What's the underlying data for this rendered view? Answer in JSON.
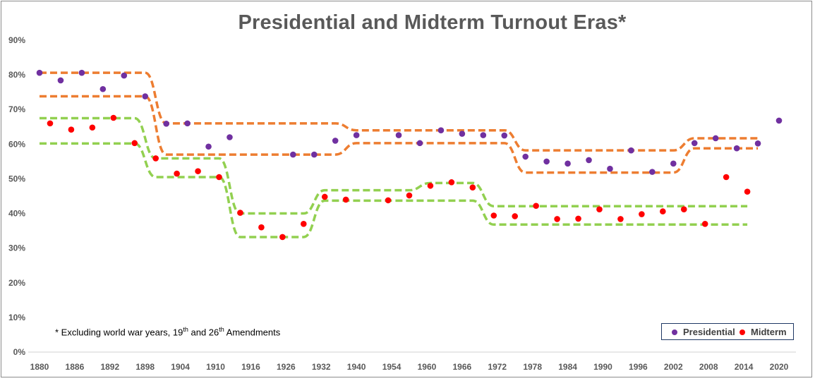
{
  "chart_data": {
    "type": "scatter",
    "title": "Presidential and Midterm Turnout Eras*",
    "xlabel": "",
    "ylabel": "",
    "x_ticks": [
      "1880",
      "1886",
      "1892",
      "1898",
      "1904",
      "1910",
      "1916",
      "1926",
      "1932",
      "1940",
      "1954",
      "1960",
      "1966",
      "1972",
      "1978",
      "1984",
      "1990",
      "1996",
      "2002",
      "2008",
      "2014",
      "2020"
    ],
    "y_ticks": [
      "0%",
      "10%",
      "20%",
      "30%",
      "40%",
      "50%",
      "60%",
      "70%",
      "80%",
      "90%"
    ],
    "ylim": [
      0,
      90
    ],
    "grid": false,
    "legend": "bottom-right",
    "annotation": {
      "prefix": "* Excluding world war years, 19",
      "sup1": "th",
      "mid": " and 26",
      "sup2": "th",
      "suffix": " Amendments"
    },
    "series": [
      {
        "name": "Presidential",
        "color": "#7030a0",
        "points": [
          [
            "1880",
            80.6
          ],
          [
            "1884",
            78.4
          ],
          [
            "1888",
            80.6
          ],
          [
            "1892",
            75.9
          ],
          [
            "1896",
            79.8
          ],
          [
            "1900",
            73.8
          ],
          [
            "1904",
            65.9
          ],
          [
            "1908",
            66.0
          ],
          [
            "1912",
            59.3
          ],
          [
            "1916",
            62.0
          ],
          [
            "1928",
            57.0
          ],
          [
            "1932",
            57.0
          ],
          [
            "1936",
            61.0
          ],
          [
            "1940",
            62.6
          ],
          [
            "1948",
            62.6
          ],
          [
            "1952",
            60.3
          ],
          [
            "1956",
            64.0
          ],
          [
            "1960",
            63.0
          ],
          [
            "1964",
            62.6
          ],
          [
            "1968",
            62.5
          ],
          [
            "1972",
            56.4
          ],
          [
            "1976",
            55.0
          ],
          [
            "1980",
            54.4
          ],
          [
            "1984",
            55.4
          ],
          [
            "1988",
            52.9
          ],
          [
            "1992",
            58.2
          ],
          [
            "1996",
            52.0
          ],
          [
            "2000",
            54.4
          ],
          [
            "2004",
            60.3
          ],
          [
            "2008",
            61.7
          ],
          [
            "2012",
            58.8
          ],
          [
            "2016",
            60.2
          ],
          [
            "2020",
            66.8
          ]
        ]
      },
      {
        "name": "Midterm",
        "color": "#ff0000",
        "points": [
          [
            "1882",
            66.0
          ],
          [
            "1886",
            64.2
          ],
          [
            "1890",
            64.8
          ],
          [
            "1894",
            67.6
          ],
          [
            "1898",
            60.3
          ],
          [
            "1902",
            55.9
          ],
          [
            "1906",
            51.5
          ],
          [
            "1910",
            52.2
          ],
          [
            "1914",
            50.5
          ],
          [
            "1918",
            40.2
          ],
          [
            "1922",
            36.0
          ],
          [
            "1926",
            33.2
          ],
          [
            "1930",
            37.0
          ],
          [
            "1934",
            44.8
          ],
          [
            "1938",
            44.0
          ],
          [
            "1946",
            43.8
          ],
          [
            "1950",
            45.2
          ],
          [
            "1954",
            48.0
          ],
          [
            "1958",
            49.0
          ],
          [
            "1962",
            47.5
          ],
          [
            "1966",
            39.4
          ],
          [
            "1970",
            39.2
          ],
          [
            "1974",
            42.2
          ],
          [
            "1978",
            38.4
          ],
          [
            "1982",
            38.5
          ],
          [
            "1986",
            41.2
          ],
          [
            "1990",
            38.4
          ],
          [
            "1994",
            39.8
          ],
          [
            "1998",
            40.6
          ],
          [
            "2002",
            41.2
          ],
          [
            "2006",
            37.0
          ],
          [
            "2010",
            50.5
          ],
          [
            "2014",
            46.3
          ]
        ]
      }
    ],
    "era_bands": [
      {
        "color": "#ed7d31",
        "name": "presidential-era-upper",
        "segments": [
          [
            1880,
            1900,
            80.6
          ],
          [
            1904,
            1936,
            66.0
          ],
          [
            1940,
            1968,
            64.0
          ],
          [
            1972,
            2000,
            58.2
          ],
          [
            2004,
            2016,
            61.7
          ]
        ]
      },
      {
        "color": "#ed7d31",
        "name": "presidential-era-lower",
        "segments": [
          [
            1880,
            1900,
            73.8
          ],
          [
            1904,
            1936,
            57.0
          ],
          [
            1940,
            1968,
            60.3
          ],
          [
            1972,
            2000,
            51.8
          ],
          [
            2004,
            2016,
            58.8
          ]
        ]
      },
      {
        "color": "#92d050",
        "name": "midterm-era-upper",
        "segments": [
          [
            1880,
            1898,
            67.5
          ],
          [
            1902,
            1914,
            55.9
          ],
          [
            1918,
            1930,
            40.0
          ],
          [
            1934,
            1950,
            46.7
          ],
          [
            1954,
            1962,
            48.8
          ],
          [
            1966,
            2014,
            42.1
          ]
        ]
      },
      {
        "color": "#92d050",
        "name": "midterm-era-lower",
        "segments": [
          [
            1880,
            1898,
            60.2
          ],
          [
            1902,
            1914,
            50.5
          ],
          [
            1918,
            1930,
            33.2
          ],
          [
            1934,
            1962,
            43.7
          ],
          [
            1966,
            2014,
            36.8
          ]
        ]
      }
    ]
  }
}
